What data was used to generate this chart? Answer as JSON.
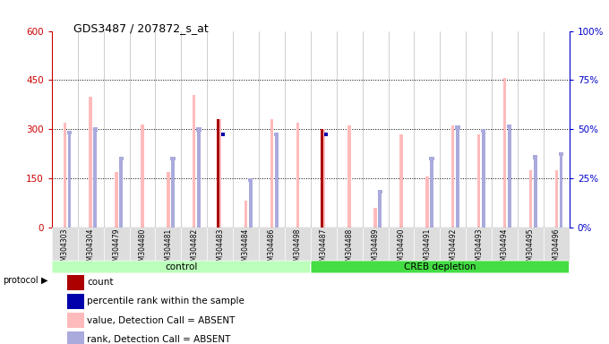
{
  "title": "GDS3487 / 207872_s_at",
  "samples": [
    "GSM304303",
    "GSM304304",
    "GSM304479",
    "GSM304480",
    "GSM304481",
    "GSM304482",
    "GSM304483",
    "GSM304484",
    "GSM304486",
    "GSM304498",
    "GSM304487",
    "GSM304488",
    "GSM304489",
    "GSM304490",
    "GSM304491",
    "GSM304492",
    "GSM304493",
    "GSM304494",
    "GSM304495",
    "GSM304496"
  ],
  "value_absent": [
    320,
    400,
    170,
    315,
    168,
    405,
    330,
    80,
    330,
    320,
    300,
    310,
    60,
    285,
    155,
    310,
    285,
    455,
    175,
    175
  ],
  "rank_absent": [
    295,
    305,
    215,
    null,
    215,
    305,
    null,
    150,
    290,
    null,
    null,
    null,
    115,
    null,
    215,
    310,
    300,
    315,
    220,
    230
  ],
  "count_val": [
    null,
    null,
    null,
    null,
    null,
    null,
    330,
    null,
    null,
    null,
    300,
    null,
    null,
    null,
    null,
    null,
    null,
    null,
    null,
    null
  ],
  "percentile_val": [
    null,
    null,
    null,
    null,
    null,
    null,
    290,
    null,
    null,
    null,
    290,
    null,
    null,
    null,
    null,
    null,
    null,
    null,
    null,
    null
  ],
  "groups": [
    {
      "label": "control",
      "start": 0,
      "end": 10,
      "color": "#bbffbb"
    },
    {
      "label": "CREB depletion",
      "start": 10,
      "end": 20,
      "color": "#44dd44"
    }
  ],
  "ylim_left": [
    0,
    600
  ],
  "ylim_right": [
    0,
    100
  ],
  "yticks_left": [
    0,
    150,
    300,
    450,
    600
  ],
  "yticks_right": [
    0,
    25,
    50,
    75,
    100
  ],
  "value_absent_color": "#ffbbbb",
  "rank_absent_color": "#aaaadd",
  "count_color": "#aa0000",
  "percentile_color": "#0000aa",
  "left_axis_color": "#cc0000",
  "right_axis_color": "#0000cc",
  "background_color": "#ffffff",
  "col_bg_color": "#dddddd"
}
